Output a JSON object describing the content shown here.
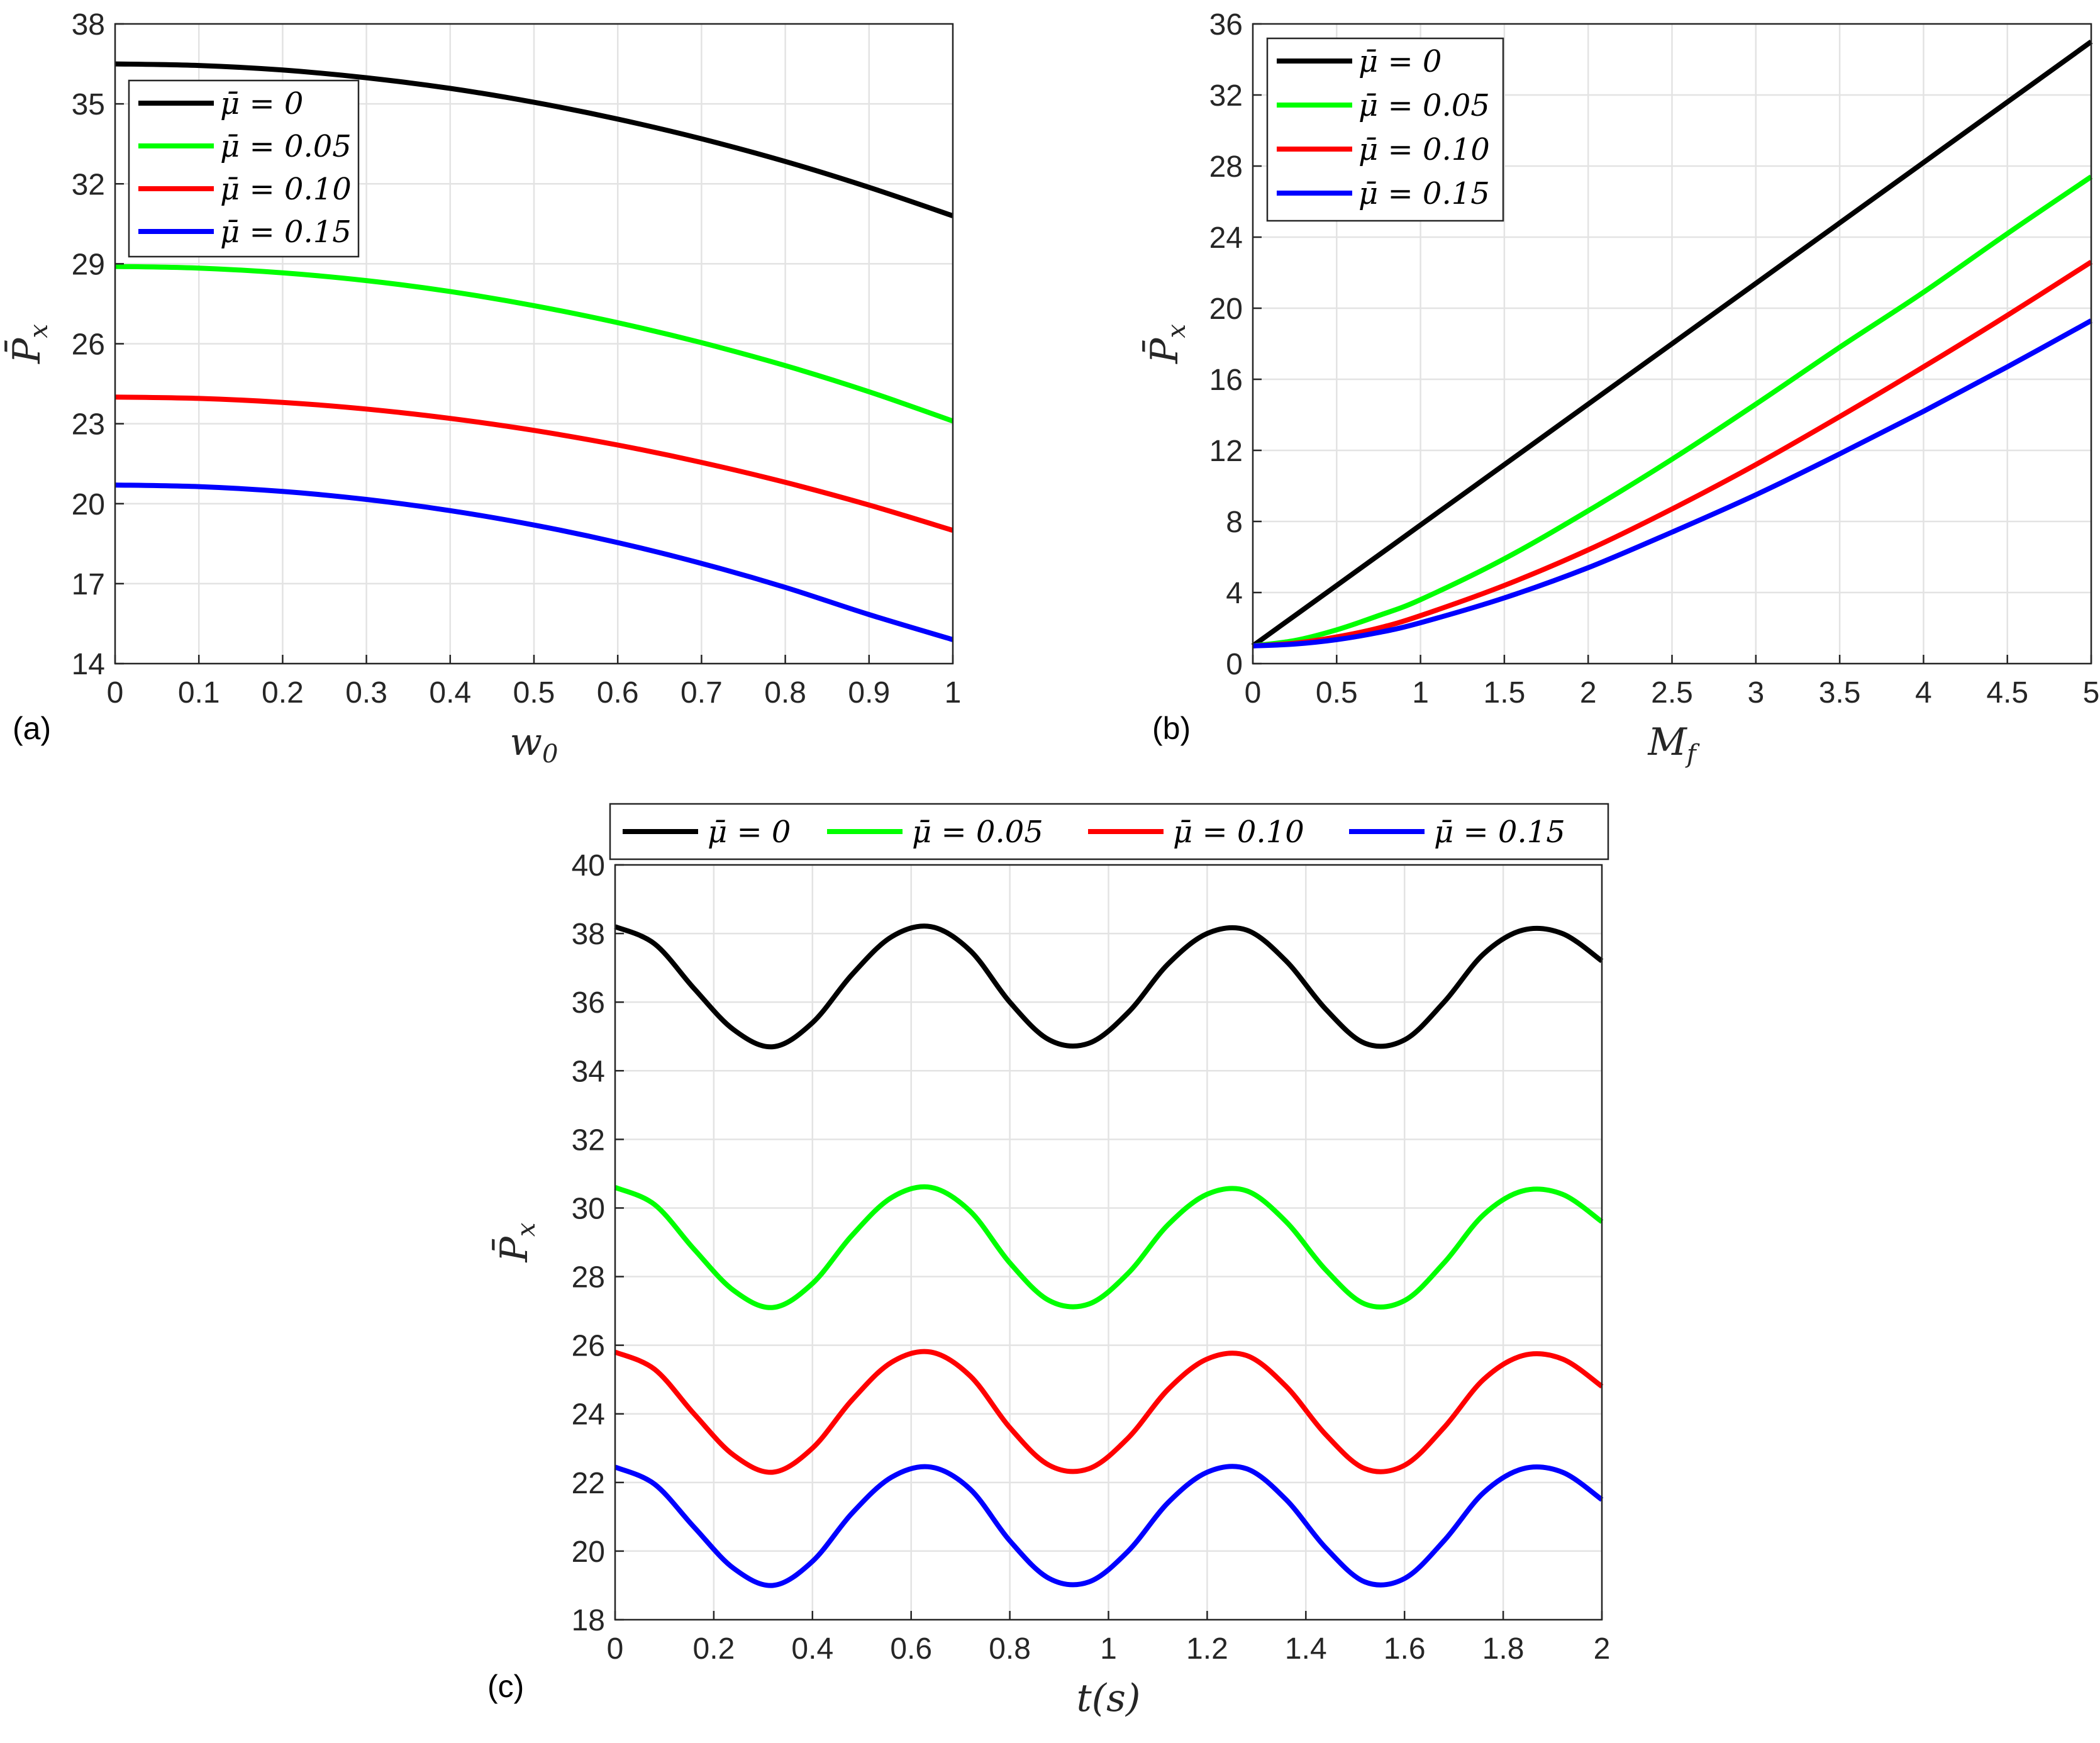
{
  "chart_data": [
    {
      "id": "a",
      "type": "line",
      "panel_label": "(a)",
      "xlabel": "w",
      "xlabel_sub": "0",
      "ylabel": "P̄",
      "ylabel_sub": "x",
      "xlim": [
        0,
        1
      ],
      "ylim": [
        14,
        38
      ],
      "xticks": [
        0,
        0.1,
        0.2,
        0.3,
        0.4,
        0.5,
        0.6,
        0.7,
        0.8,
        0.9,
        1
      ],
      "xtick_labels": [
        "0",
        "0.1",
        "0.2",
        "0.3",
        "0.4",
        "0.5",
        "0.6",
        "0.7",
        "0.8",
        "0.9",
        "1"
      ],
      "yticks": [
        14,
        17,
        20,
        23,
        26,
        29,
        32,
        35,
        38
      ],
      "ytick_labels": [
        "14",
        "17",
        "20",
        "23",
        "26",
        "29",
        "32",
        "35",
        "38"
      ],
      "grid": true,
      "legend_position": "upper-left",
      "x": [
        0,
        0.1,
        0.2,
        0.3,
        0.4,
        0.5,
        0.6,
        0.7,
        0.8,
        0.9,
        1.0
      ],
      "series": [
        {
          "name": "μ̄ = 0",
          "color": "#000000",
          "values": [
            36.5,
            36.44,
            36.27,
            35.98,
            35.58,
            35.06,
            34.43,
            33.69,
            32.84,
            31.87,
            30.8
          ]
        },
        {
          "name": "μ̄ = 0.05",
          "color": "#00ff00",
          "values": [
            28.9,
            28.84,
            28.66,
            28.37,
            27.96,
            27.43,
            26.79,
            26.04,
            25.18,
            24.2,
            23.1
          ]
        },
        {
          "name": "μ̄ = 0.10",
          "color": "#ff0000",
          "values": [
            24.0,
            23.95,
            23.8,
            23.55,
            23.2,
            22.75,
            22.2,
            21.55,
            20.8,
            19.95,
            19.0
          ]
        },
        {
          "name": "μ̄ = 0.15",
          "color": "#0000ff",
          "values": [
            20.7,
            20.64,
            20.46,
            20.16,
            19.74,
            19.2,
            18.54,
            17.76,
            16.86,
            15.84,
            14.9
          ]
        }
      ]
    },
    {
      "id": "b",
      "type": "line",
      "panel_label": "(b)",
      "xlabel": "M",
      "xlabel_sub": "f",
      "ylabel": "P̄",
      "ylabel_sub": "x",
      "xlim": [
        0,
        5
      ],
      "ylim": [
        0,
        36
      ],
      "xticks": [
        0,
        0.5,
        1,
        1.5,
        2,
        2.5,
        3,
        3.5,
        4,
        4.5,
        5
      ],
      "xtick_labels": [
        "0",
        "0.5",
        "1",
        "1.5",
        "2",
        "2.5",
        "3",
        "3.5",
        "4",
        "4.5",
        "5"
      ],
      "yticks": [
        0,
        4,
        8,
        12,
        16,
        20,
        24,
        28,
        32,
        36
      ],
      "ytick_labels": [
        "0",
        "4",
        "8",
        "12",
        "16",
        "20",
        "24",
        "28",
        "32",
        "36"
      ],
      "grid": true,
      "legend_position": "upper-left",
      "x": [
        0,
        0.25,
        0.5,
        0.75,
        1,
        1.5,
        2,
        2.5,
        3,
        3.5,
        4,
        4.5,
        5
      ],
      "series": [
        {
          "name": "μ̄ = 0",
          "color": "#000000",
          "values": [
            1.0,
            2.7,
            4.4,
            6.1,
            7.8,
            11.2,
            14.6,
            18.0,
            21.4,
            24.8,
            28.2,
            31.6,
            35.0
          ]
        },
        {
          "name": "μ̄ = 0.05",
          "color": "#00ff00",
          "values": [
            1.0,
            1.3,
            1.9,
            2.7,
            3.6,
            5.9,
            8.6,
            11.5,
            14.6,
            17.8,
            20.9,
            24.2,
            27.4
          ]
        },
        {
          "name": "μ̄ = 0.10",
          "color": "#ff0000",
          "values": [
            1.0,
            1.15,
            1.5,
            2.0,
            2.7,
            4.4,
            6.4,
            8.7,
            11.2,
            13.9,
            16.7,
            19.6,
            22.6
          ]
        },
        {
          "name": "μ̄ = 0.15",
          "color": "#0000ff",
          "values": [
            1.0,
            1.1,
            1.35,
            1.75,
            2.3,
            3.7,
            5.4,
            7.4,
            9.5,
            11.8,
            14.2,
            16.7,
            19.3
          ]
        }
      ]
    },
    {
      "id": "c",
      "type": "line",
      "panel_label": "(c)",
      "xlabel": "t(s)",
      "ylabel": "P̄",
      "ylabel_sub": "x",
      "xlim": [
        0,
        2
      ],
      "ylim": [
        18,
        40
      ],
      "xticks": [
        0,
        0.2,
        0.4,
        0.6,
        0.8,
        1,
        1.2,
        1.4,
        1.6,
        1.8,
        2
      ],
      "xtick_labels": [
        "0",
        "0.2",
        "0.4",
        "0.6",
        "0.8",
        "1",
        "1.2",
        "1.4",
        "1.6",
        "1.8",
        "2"
      ],
      "yticks": [
        18,
        20,
        22,
        24,
        26,
        28,
        30,
        32,
        34,
        36,
        38,
        40
      ],
      "ytick_labels": [
        "18",
        "20",
        "22",
        "24",
        "26",
        "28",
        "30",
        "32",
        "34",
        "36",
        "38",
        "40"
      ],
      "grid": true,
      "legend_position": "top-outside-horizontal",
      "x": [
        0,
        0.08,
        0.16,
        0.24,
        0.32,
        0.4,
        0.48,
        0.56,
        0.64,
        0.72,
        0.8,
        0.88,
        0.96,
        1.04,
        1.12,
        1.2,
        1.28,
        1.36,
        1.44,
        1.52,
        1.6,
        1.68,
        1.76,
        1.84,
        1.92,
        2.0
      ],
      "series": [
        {
          "name": "μ̄ = 0",
          "color": "#000000",
          "values": [
            38.2,
            37.7,
            36.4,
            35.2,
            34.7,
            35.4,
            36.8,
            37.9,
            38.2,
            37.5,
            36.0,
            34.9,
            34.8,
            35.7,
            37.1,
            38.0,
            38.1,
            37.2,
            35.8,
            34.8,
            34.9,
            36.0,
            37.4,
            38.1,
            38.0,
            37.2
          ]
        },
        {
          "name": "μ̄ = 0.05",
          "color": "#00ff00",
          "values": [
            30.6,
            30.1,
            28.8,
            27.6,
            27.1,
            27.8,
            29.2,
            30.3,
            30.6,
            29.9,
            28.4,
            27.3,
            27.2,
            28.1,
            29.5,
            30.4,
            30.5,
            29.6,
            28.2,
            27.2,
            27.3,
            28.4,
            29.8,
            30.5,
            30.4,
            29.6
          ]
        },
        {
          "name": "μ̄ = 0.10",
          "color": "#ff0000",
          "values": [
            25.8,
            25.3,
            24.0,
            22.8,
            22.3,
            23.0,
            24.4,
            25.5,
            25.8,
            25.1,
            23.6,
            22.5,
            22.4,
            23.3,
            24.7,
            25.6,
            25.7,
            24.8,
            23.4,
            22.4,
            22.5,
            23.6,
            25.0,
            25.7,
            25.6,
            24.8
          ]
        },
        {
          "name": "μ̄ = 0.15",
          "color": "#0000ff",
          "values": [
            22.45,
            21.95,
            20.7,
            19.5,
            19.0,
            19.7,
            21.1,
            22.15,
            22.45,
            21.8,
            20.3,
            19.2,
            19.1,
            20.0,
            21.4,
            22.3,
            22.4,
            21.5,
            20.1,
            19.1,
            19.2,
            20.3,
            21.7,
            22.4,
            22.3,
            21.5
          ]
        }
      ]
    }
  ]
}
